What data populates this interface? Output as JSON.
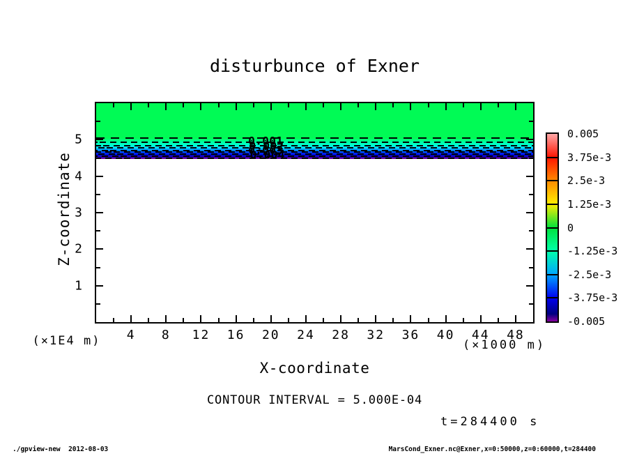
{
  "title": "disturbunce of Exner",
  "axes": {
    "x": {
      "label": "X-coordinate",
      "unit": "(×1000 m)",
      "range": [
        0,
        50
      ],
      "major_ticks": [
        4,
        8,
        12,
        16,
        20,
        24,
        28,
        32,
        36,
        40,
        44,
        48
      ],
      "minor_step": 2
    },
    "y": {
      "label": "Z-coordinate",
      "unit": "(×1E4 m)",
      "range": [
        0,
        6
      ],
      "major_ticks": [
        1,
        2,
        3,
        4,
        5
      ],
      "minor_step": 0.5
    }
  },
  "annotations": {
    "contour_interval": "CONTOUR INTERVAL = 5.000E-04",
    "time": "t=284400 s"
  },
  "footer": {
    "left": "./gpview-new  2012-08-03",
    "right": "MarsCond_Exner.nc@Exner,x=0:50000,z=0:60000,t=284400"
  },
  "chart_data": {
    "type": "filled-contour",
    "title": "disturbunce of Exner",
    "xlabel": "X-coordinate (×1000 m)",
    "ylabel": "Z-coordinate (×1E4 m)",
    "xlim": [
      0,
      50
    ],
    "ylim": [
      0,
      6
    ],
    "grid": false,
    "contour_interval": 0.0005,
    "variable": "Exner disturbance",
    "time_s": 284400,
    "fill_regions": [
      {
        "z_from": 5.04,
        "z_to": 6.0,
        "color": "#00FB55",
        "note": "near-zero values, flat green fill across full x range"
      },
      {
        "z_from": 4.47,
        "z_to": 5.04,
        "gradient": true,
        "note": "thin horizontal layer where value drops from 0 to -0.005"
      },
      {
        "z_from": 0.0,
        "z_to": 4.47,
        "color": "#FFFFFF",
        "note": "below palette minimum (< -0.005), unfilled"
      }
    ],
    "band_stops": [
      {
        "at": 0.0,
        "color": "#00FB55"
      },
      {
        "at": 0.18,
        "color": "#00FF9E"
      },
      {
        "at": 0.35,
        "color": "#00FFD8"
      },
      {
        "at": 0.48,
        "color": "#00D0FF"
      },
      {
        "at": 0.6,
        "color": "#0080FF"
      },
      {
        "at": 0.72,
        "color": "#0028FF"
      },
      {
        "at": 0.84,
        "color": "#0000C8"
      },
      {
        "at": 0.93,
        "color": "#3A00A8"
      },
      {
        "at": 1.0,
        "color": "#7A00A8"
      }
    ],
    "contour_lines": [
      {
        "value": -0.0005,
        "z": 5.04,
        "style": "dashed-long"
      },
      {
        "value": -0.001,
        "z": 4.93,
        "style": "dashed"
      },
      {
        "value": -0.0015,
        "z": 4.84,
        "style": "dashed"
      },
      {
        "value": -0.002,
        "z": 4.78,
        "style": "dashed"
      },
      {
        "value": -0.0025,
        "z": 4.71,
        "style": "dashed"
      },
      {
        "value": -0.003,
        "z": 4.66,
        "style": "dashed"
      },
      {
        "value": -0.0035,
        "z": 4.6,
        "style": "dashed"
      },
      {
        "value": -0.004,
        "z": 4.55,
        "style": "dashed"
      },
      {
        "value": -0.0045,
        "z": 4.5,
        "style": "dashed"
      }
    ],
    "contour_labels": [
      {
        "text": "0.001",
        "x": 17.4,
        "z": 4.97
      },
      {
        "text": "0.002",
        "x": 17.5,
        "z": 4.84
      },
      {
        "text": "0.003",
        "x": 17.4,
        "z": 4.72
      },
      {
        "text": "0.004",
        "x": 17.6,
        "z": 4.59
      }
    ],
    "colorbar": {
      "labels": [
        "0.005",
        "3.75e-3",
        "2.5e-3",
        "1.25e-3",
        "0",
        "-1.25e-3",
        "-2.5e-3",
        "-3.75e-3",
        "-0.005"
      ],
      "stops": [
        {
          "at": 0.0,
          "color": "#FFA8A8"
        },
        {
          "at": 0.125,
          "color": "#FF1400"
        },
        {
          "at": 0.25,
          "color": "#FF8A00"
        },
        {
          "at": 0.375,
          "color": "#FFEE00"
        },
        {
          "at": 0.5,
          "color": "#00E23C"
        },
        {
          "at": 0.625,
          "color": "#00FFAA"
        },
        {
          "at": 0.75,
          "color": "#00A6FF"
        },
        {
          "at": 0.875,
          "color": "#0000F0"
        },
        {
          "at": 0.96,
          "color": "#000080"
        },
        {
          "at": 1.0,
          "color": "#8800A0"
        }
      ]
    }
  }
}
